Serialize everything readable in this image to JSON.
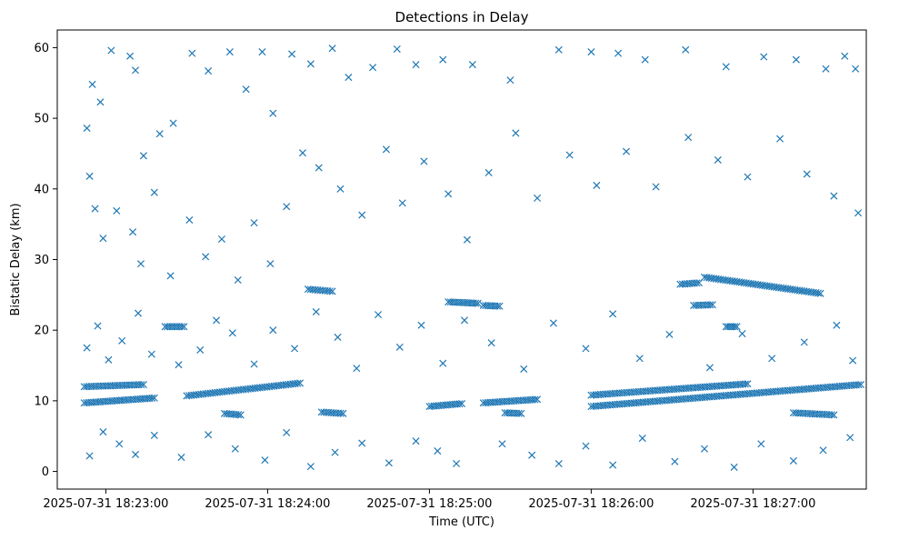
{
  "chart_data": {
    "type": "scatter",
    "title": "Detections in Delay",
    "xlabel": "Time (UTC)",
    "ylabel": "Bistatic Delay (km)",
    "marker": "x",
    "marker_color": "#1f77b4",
    "grid": false,
    "legend": "none",
    "xlim": [
      "2025-07-31 18:22:42",
      "2025-07-31 18:27:42"
    ],
    "ylim": [
      -2.5,
      62.5
    ],
    "x_ticks": [
      {
        "value": "2025-07-31 18:23:00",
        "label": "2025-07-31 18:23:00"
      },
      {
        "value": "2025-07-31 18:24:00",
        "label": "2025-07-31 18:24:00"
      },
      {
        "value": "2025-07-31 18:25:00",
        "label": "2025-07-31 18:25:00"
      },
      {
        "value": "2025-07-31 18:26:00",
        "label": "2025-07-31 18:26:00"
      },
      {
        "value": "2025-07-31 18:27:00",
        "label": "2025-07-31 18:27:00"
      }
    ],
    "y_ticks": [
      0,
      10,
      20,
      30,
      40,
      50,
      60
    ],
    "tracks": [
      {
        "start": [
          "2025-07-31 18:22:52",
          12.0
        ],
        "end": [
          "2025-07-31 18:23:14",
          12.3
        ]
      },
      {
        "start": [
          "2025-07-31 18:22:52",
          9.7
        ],
        "end": [
          "2025-07-31 18:23:18",
          10.4
        ]
      },
      {
        "start": [
          "2025-07-31 18:23:30",
          10.7
        ],
        "end": [
          "2025-07-31 18:24:12",
          12.5
        ]
      },
      {
        "start": [
          "2025-07-31 18:23:22",
          20.5
        ],
        "end": [
          "2025-07-31 18:23:29",
          20.5
        ]
      },
      {
        "start": [
          "2025-07-31 18:23:44",
          8.2
        ],
        "end": [
          "2025-07-31 18:23:50",
          8.0
        ]
      },
      {
        "start": [
          "2025-07-31 18:24:15",
          25.8
        ],
        "end": [
          "2025-07-31 18:24:24",
          25.5
        ]
      },
      {
        "start": [
          "2025-07-31 18:24:20",
          8.4
        ],
        "end": [
          "2025-07-31 18:24:28",
          8.2
        ]
      },
      {
        "start": [
          "2025-07-31 18:25:00",
          9.2
        ],
        "end": [
          "2025-07-31 18:25:12",
          9.6
        ]
      },
      {
        "start": [
          "2025-07-31 18:25:07",
          24.0
        ],
        "end": [
          "2025-07-31 18:25:18",
          23.8
        ]
      },
      {
        "start": [
          "2025-07-31 18:25:20",
          9.7
        ],
        "end": [
          "2025-07-31 18:25:40",
          10.2
        ]
      },
      {
        "start": [
          "2025-07-31 18:25:20",
          23.5
        ],
        "end": [
          "2025-07-31 18:25:26",
          23.4
        ]
      },
      {
        "start": [
          "2025-07-31 18:25:28",
          8.3
        ],
        "end": [
          "2025-07-31 18:25:34",
          8.2
        ]
      },
      {
        "start": [
          "2025-07-31 18:26:00",
          9.2
        ],
        "end": [
          "2025-07-31 18:27:40",
          12.3
        ]
      },
      {
        "start": [
          "2025-07-31 18:26:00",
          10.8
        ],
        "end": [
          "2025-07-31 18:26:58",
          12.4
        ]
      },
      {
        "start": [
          "2025-07-31 18:26:33",
          26.5
        ],
        "end": [
          "2025-07-31 18:26:40",
          26.7
        ]
      },
      {
        "start": [
          "2025-07-31 18:26:42",
          27.5
        ],
        "end": [
          "2025-07-31 18:27:25",
          25.2
        ]
      },
      {
        "start": [
          "2025-07-31 18:26:38",
          23.5
        ],
        "end": [
          "2025-07-31 18:26:45",
          23.6
        ]
      },
      {
        "start": [
          "2025-07-31 18:26:50",
          20.5
        ],
        "end": [
          "2025-07-31 18:26:54",
          20.5
        ]
      },
      {
        "start": [
          "2025-07-31 18:27:15",
          8.3
        ],
        "end": [
          "2025-07-31 18:27:30",
          8.0
        ]
      }
    ],
    "scatter_points": [
      [
        "2025-07-31 18:22:53",
        48.6
      ],
      [
        "2025-07-31 18:22:55",
        54.8
      ],
      [
        "2025-07-31 18:22:58",
        52.3
      ],
      [
        "2025-07-31 18:23:02",
        59.6
      ],
      [
        "2025-07-31 18:23:09",
        58.8
      ],
      [
        "2025-07-31 18:23:11",
        56.8
      ],
      [
        "2025-07-31 18:23:14",
        44.7
      ],
      [
        "2025-07-31 18:23:20",
        47.8
      ],
      [
        "2025-07-31 18:23:25",
        49.3
      ],
      [
        "2025-07-31 18:23:32",
        59.2
      ],
      [
        "2025-07-31 18:23:38",
        56.7
      ],
      [
        "2025-07-31 18:23:46",
        59.4
      ],
      [
        "2025-07-31 18:23:52",
        54.1
      ],
      [
        "2025-07-31 18:23:58",
        59.4
      ],
      [
        "2025-07-31 18:24:02",
        50.7
      ],
      [
        "2025-07-31 18:24:09",
        59.1
      ],
      [
        "2025-07-31 18:24:16",
        57.7
      ],
      [
        "2025-07-31 18:24:24",
        59.9
      ],
      [
        "2025-07-31 18:24:30",
        55.8
      ],
      [
        "2025-07-31 18:24:39",
        57.2
      ],
      [
        "2025-07-31 18:24:48",
        59.8
      ],
      [
        "2025-07-31 18:24:55",
        57.6
      ],
      [
        "2025-07-31 18:25:05",
        58.3
      ],
      [
        "2025-07-31 18:25:16",
        57.6
      ],
      [
        "2025-07-31 18:25:30",
        55.4
      ],
      [
        "2025-07-31 18:25:48",
        59.7
      ],
      [
        "2025-07-31 18:26:00",
        59.4
      ],
      [
        "2025-07-31 18:26:10",
        59.2
      ],
      [
        "2025-07-31 18:26:20",
        58.3
      ],
      [
        "2025-07-31 18:26:35",
        59.7
      ],
      [
        "2025-07-31 18:26:50",
        57.3
      ],
      [
        "2025-07-31 18:27:04",
        58.7
      ],
      [
        "2025-07-31 18:27:16",
        58.3
      ],
      [
        "2025-07-31 18:27:27",
        57.0
      ],
      [
        "2025-07-31 18:27:34",
        58.8
      ],
      [
        "2025-07-31 18:27:38",
        57.0
      ],
      [
        "2025-07-31 18:22:54",
        41.8
      ],
      [
        "2025-07-31 18:22:56",
        37.2
      ],
      [
        "2025-07-31 18:22:59",
        33.0
      ],
      [
        "2025-07-31 18:23:04",
        36.9
      ],
      [
        "2025-07-31 18:23:10",
        33.9
      ],
      [
        "2025-07-31 18:23:13",
        29.4
      ],
      [
        "2025-07-31 18:23:18",
        39.5
      ],
      [
        "2025-07-31 18:23:24",
        27.7
      ],
      [
        "2025-07-31 18:23:31",
        35.6
      ],
      [
        "2025-07-31 18:23:37",
        30.4
      ],
      [
        "2025-07-31 18:23:43",
        32.9
      ],
      [
        "2025-07-31 18:23:49",
        27.1
      ],
      [
        "2025-07-31 18:23:55",
        35.2
      ],
      [
        "2025-07-31 18:24:01",
        29.4
      ],
      [
        "2025-07-31 18:24:07",
        37.5
      ],
      [
        "2025-07-31 18:24:13",
        45.1
      ],
      [
        "2025-07-31 18:24:19",
        43.0
      ],
      [
        "2025-07-31 18:24:27",
        40.0
      ],
      [
        "2025-07-31 18:24:35",
        36.3
      ],
      [
        "2025-07-31 18:24:44",
        45.6
      ],
      [
        "2025-07-31 18:24:50",
        38.0
      ],
      [
        "2025-07-31 18:24:58",
        43.9
      ],
      [
        "2025-07-31 18:25:07",
        39.3
      ],
      [
        "2025-07-31 18:25:14",
        32.8
      ],
      [
        "2025-07-31 18:25:22",
        42.3
      ],
      [
        "2025-07-31 18:25:32",
        47.9
      ],
      [
        "2025-07-31 18:25:40",
        38.7
      ],
      [
        "2025-07-31 18:25:52",
        44.8
      ],
      [
        "2025-07-31 18:26:02",
        40.5
      ],
      [
        "2025-07-31 18:26:13",
        45.3
      ],
      [
        "2025-07-31 18:26:24",
        40.3
      ],
      [
        "2025-07-31 18:26:36",
        47.3
      ],
      [
        "2025-07-31 18:26:47",
        44.1
      ],
      [
        "2025-07-31 18:26:58",
        41.7
      ],
      [
        "2025-07-31 18:27:10",
        47.1
      ],
      [
        "2025-07-31 18:27:20",
        42.1
      ],
      [
        "2025-07-31 18:27:30",
        39.0
      ],
      [
        "2025-07-31 18:27:39",
        36.6
      ],
      [
        "2025-07-31 18:22:53",
        17.5
      ],
      [
        "2025-07-31 18:22:57",
        20.6
      ],
      [
        "2025-07-31 18:23:01",
        15.8
      ],
      [
        "2025-07-31 18:23:06",
        18.5
      ],
      [
        "2025-07-31 18:23:12",
        22.4
      ],
      [
        "2025-07-31 18:23:17",
        16.6
      ],
      [
        "2025-07-31 18:23:27",
        15.1
      ],
      [
        "2025-07-31 18:23:35",
        17.2
      ],
      [
        "2025-07-31 18:23:41",
        21.4
      ],
      [
        "2025-07-31 18:23:47",
        19.6
      ],
      [
        "2025-07-31 18:23:55",
        15.2
      ],
      [
        "2025-07-31 18:24:02",
        20.0
      ],
      [
        "2025-07-31 18:24:10",
        17.4
      ],
      [
        "2025-07-31 18:24:18",
        22.6
      ],
      [
        "2025-07-31 18:24:26",
        19.0
      ],
      [
        "2025-07-31 18:24:33",
        14.6
      ],
      [
        "2025-07-31 18:24:41",
        22.2
      ],
      [
        "2025-07-31 18:24:49",
        17.6
      ],
      [
        "2025-07-31 18:24:57",
        20.7
      ],
      [
        "2025-07-31 18:25:05",
        15.3
      ],
      [
        "2025-07-31 18:25:13",
        21.4
      ],
      [
        "2025-07-31 18:25:23",
        18.2
      ],
      [
        "2025-07-31 18:25:35",
        14.5
      ],
      [
        "2025-07-31 18:25:46",
        21.0
      ],
      [
        "2025-07-31 18:25:58",
        17.4
      ],
      [
        "2025-07-31 18:26:08",
        22.3
      ],
      [
        "2025-07-31 18:26:18",
        16.0
      ],
      [
        "2025-07-31 18:26:29",
        19.4
      ],
      [
        "2025-07-31 18:26:44",
        14.7
      ],
      [
        "2025-07-31 18:26:56",
        19.5
      ],
      [
        "2025-07-31 18:27:07",
        16.0
      ],
      [
        "2025-07-31 18:27:19",
        18.3
      ],
      [
        "2025-07-31 18:27:31",
        20.7
      ],
      [
        "2025-07-31 18:27:37",
        15.7
      ],
      [
        "2025-07-31 18:22:54",
        2.2
      ],
      [
        "2025-07-31 18:22:59",
        5.6
      ],
      [
        "2025-07-31 18:23:05",
        3.9
      ],
      [
        "2025-07-31 18:23:11",
        2.4
      ],
      [
        "2025-07-31 18:23:18",
        5.1
      ],
      [
        "2025-07-31 18:23:28",
        2.0
      ],
      [
        "2025-07-31 18:23:38",
        5.2
      ],
      [
        "2025-07-31 18:23:48",
        3.2
      ],
      [
        "2025-07-31 18:23:59",
        1.6
      ],
      [
        "2025-07-31 18:24:07",
        5.5
      ],
      [
        "2025-07-31 18:24:16",
        0.7
      ],
      [
        "2025-07-31 18:24:25",
        2.7
      ],
      [
        "2025-07-31 18:24:35",
        4.0
      ],
      [
        "2025-07-31 18:24:45",
        1.2
      ],
      [
        "2025-07-31 18:24:55",
        4.3
      ],
      [
        "2025-07-31 18:25:03",
        2.9
      ],
      [
        "2025-07-31 18:25:10",
        1.1
      ],
      [
        "2025-07-31 18:25:27",
        3.9
      ],
      [
        "2025-07-31 18:25:38",
        2.3
      ],
      [
        "2025-07-31 18:25:48",
        1.1
      ],
      [
        "2025-07-31 18:25:58",
        3.6
      ],
      [
        "2025-07-31 18:26:08",
        0.9
      ],
      [
        "2025-07-31 18:26:19",
        4.7
      ],
      [
        "2025-07-31 18:26:31",
        1.4
      ],
      [
        "2025-07-31 18:26:42",
        3.2
      ],
      [
        "2025-07-31 18:26:53",
        0.6
      ],
      [
        "2025-07-31 18:27:03",
        3.9
      ],
      [
        "2025-07-31 18:27:15",
        1.5
      ],
      [
        "2025-07-31 18:27:26",
        3.0
      ],
      [
        "2025-07-31 18:27:36",
        4.8
      ]
    ]
  }
}
